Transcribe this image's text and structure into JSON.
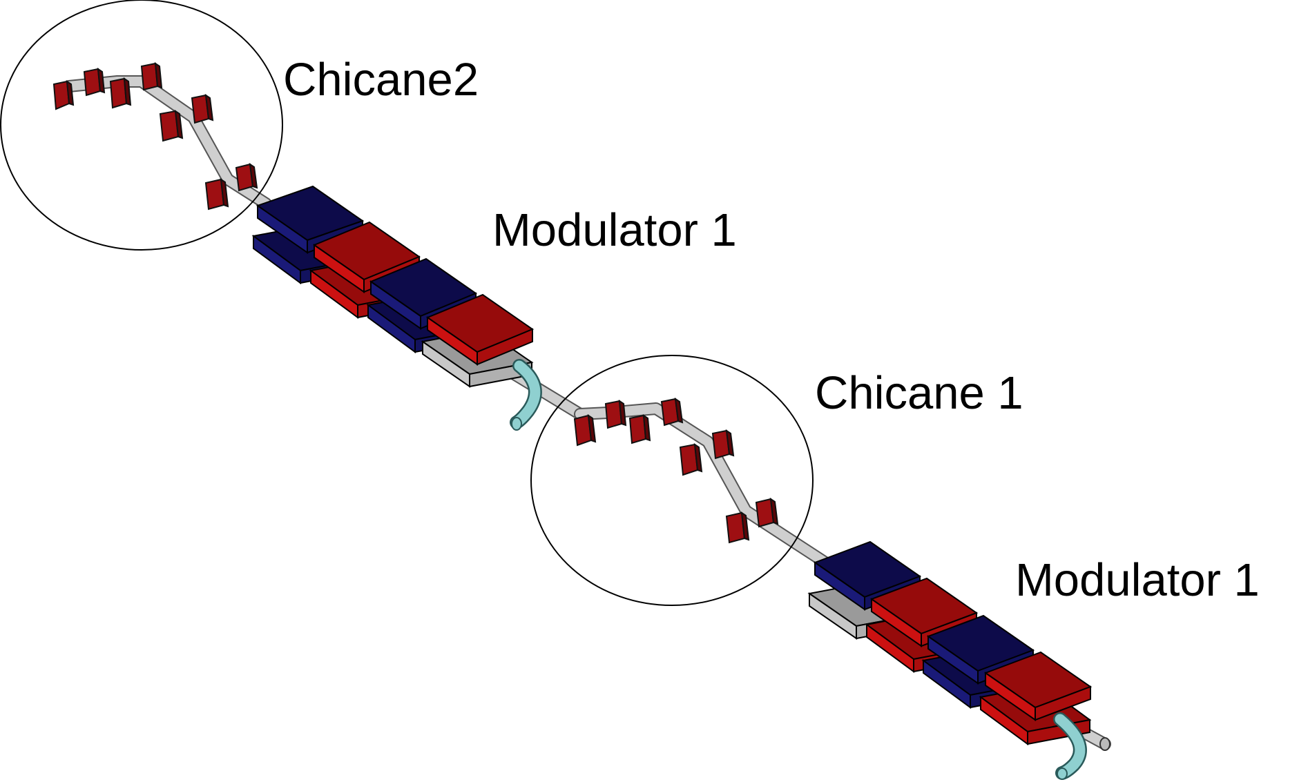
{
  "labels": {
    "chicane_top": "Chicane2",
    "modulator_top": "Modulator 1",
    "chicane_middle": "Chicane 1",
    "modulator_bottom": "Modulator 1"
  },
  "colors": {
    "background": "#ffffff",
    "magnet_red_top": "#960b0b",
    "magnet_red_side": "#cc1111",
    "magnet_blue_top": "#0d0b4a",
    "magnet_blue_side": "#1a1a78",
    "gray_block_top": "#9a9a9a",
    "gray_block_side": "#c8c8c8",
    "beam_pipe": "#c8c8c8",
    "curved_pipe": "#8fd0d0",
    "dipole_red": "#9e0f12",
    "outline": "#000000"
  },
  "icons": {
    "dipole": "red-dipole-magnet-icon",
    "undulator_segment": "undulator-block-icon",
    "pipe": "beam-pipe-icon"
  }
}
